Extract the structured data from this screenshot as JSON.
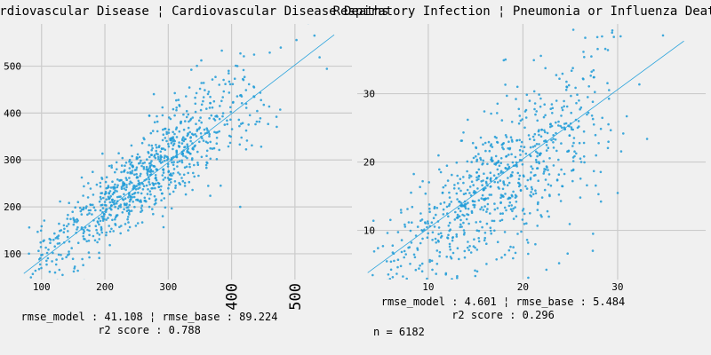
{
  "chart_data": [
    {
      "type": "scatter",
      "title": "Cardiovascular Disease ¦ Cardiovascular Disease Deaths",
      "x_ticks": [
        100,
        200,
        300,
        400,
        500
      ],
      "y_ticks": [
        100,
        200,
        300,
        400,
        500
      ],
      "xlim": [
        40,
        590
      ],
      "ylim": [
        45,
        590
      ],
      "fit_line": [
        [
          72,
          58
        ],
        [
          562,
          567
        ]
      ],
      "grid": true,
      "metrics": {
        "line1": "rmse_model : 41.108 ¦ rmse_base : 89.224",
        "line2": "r2 score : 0.788"
      }
    },
    {
      "type": "scatter",
      "title": "Respiratory Infection ¦ Pneumonia or Influenza Deaths",
      "x_ticks": [
        10,
        20,
        30
      ],
      "y_ticks": [
        10,
        20,
        30
      ],
      "xlim": [
        2.5,
        39.3
      ],
      "ylim": [
        2.8,
        40.2
      ],
      "fit_line": [
        [
          3.6,
          3.8
        ],
        [
          37,
          37.7
        ]
      ],
      "grid": true,
      "metrics": {
        "line1": "rmse_model : 4.601 ¦ rmse_base : 5.484",
        "line2": "r2 score : 0.296"
      }
    }
  ],
  "footer": {
    "sample_count": "n = 6182"
  }
}
